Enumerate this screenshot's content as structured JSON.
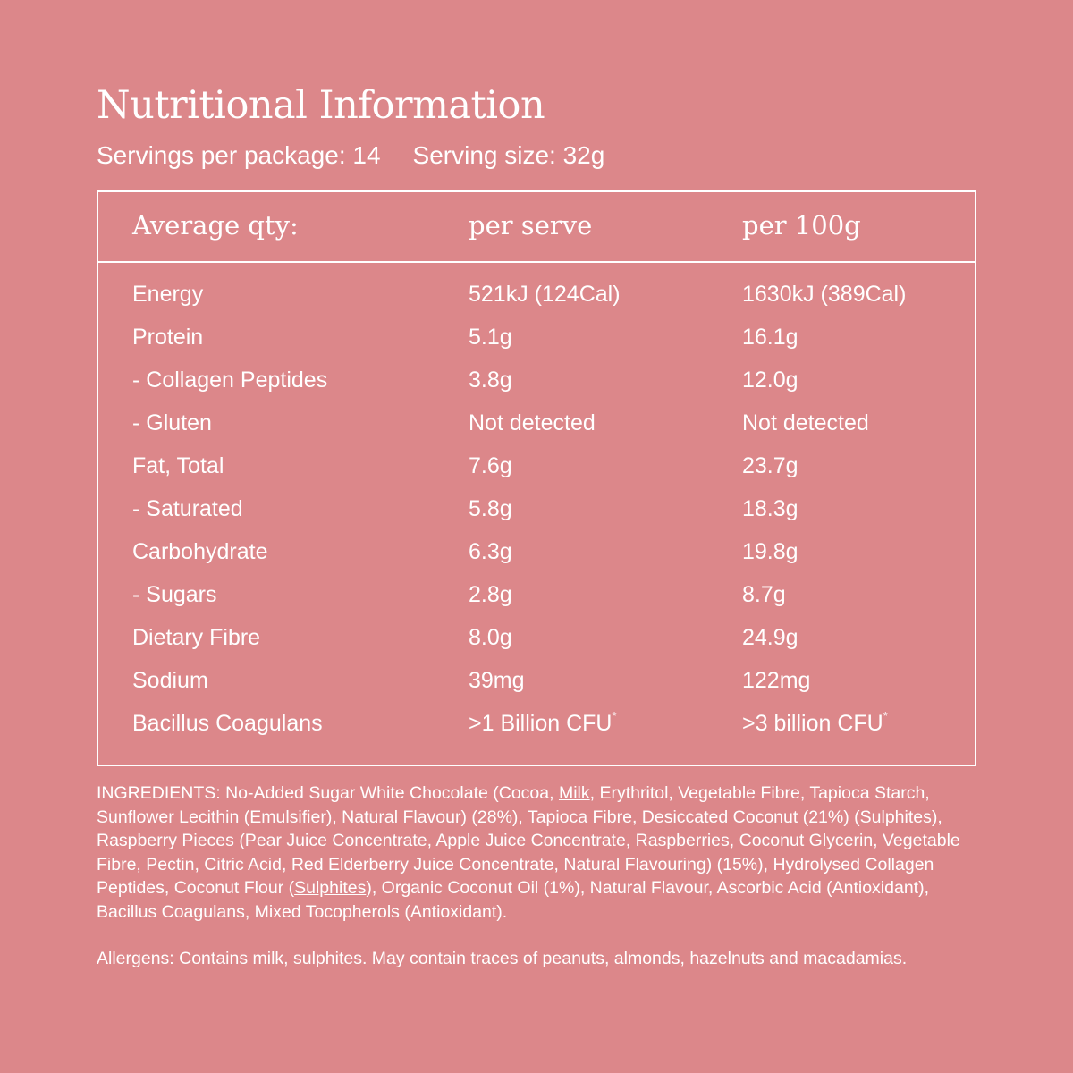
{
  "title": "Nutritional Information",
  "servings": {
    "per_package": "Servings per package: 14",
    "size": "Serving size: 32g"
  },
  "table": {
    "headers": [
      "Average qty:",
      "per serve",
      "per 100g"
    ],
    "rows": [
      {
        "label": "Energy",
        "per_serve": "521kJ (124Cal)",
        "per_100g": "1630kJ (389Cal)"
      },
      {
        "label": "Protein",
        "per_serve": "5.1g",
        "per_100g": "16.1g"
      },
      {
        "label": "- Collagen Peptides",
        "per_serve": "3.8g",
        "per_100g": "12.0g"
      },
      {
        "label": "- Gluten",
        "per_serve": "Not detected",
        "per_100g": "Not detected"
      },
      {
        "label": "Fat, Total",
        "per_serve": "7.6g",
        "per_100g": "23.7g"
      },
      {
        "label": "- Saturated",
        "per_serve": "5.8g",
        "per_100g": "18.3g"
      },
      {
        "label": "Carbohydrate",
        "per_serve": "6.3g",
        "per_100g": "19.8g"
      },
      {
        "label": "- Sugars",
        "per_serve": "2.8g",
        "per_100g": "8.7g"
      },
      {
        "label": "Dietary Fibre",
        "per_serve": "8.0g",
        "per_100g": "24.9g"
      },
      {
        "label": "Sodium",
        "per_serve": "39mg",
        "per_100g": "122mg"
      },
      {
        "label": "Bacillus Coagulans",
        "per_serve": ">1 Billion CFU",
        "per_100g": ">3 billion CFU",
        "footnote": "*"
      }
    ]
  },
  "ingredients": {
    "parts": [
      "INGREDIENTS: No-Added Sugar White Chocolate (Cocoa, ",
      "Milk",
      ", Erythritol, Vegetable Fibre, Tapioca Starch, Sunflower Lecithin (Emulsifier), Natural Flavour) (28%), Tapioca Fibre, Desiccated Coconut (21%) (",
      "Sulphites",
      "), Raspberry Pieces (Pear Juice Concentrate, Apple Juice Concentrate, Raspberries, Coconut Glycerin, Vegetable Fibre, Pectin, Citric Acid, Red Elderberry Juice Concentrate, Natural Flavouring) (15%), Hydrolysed Collagen Peptides, Coconut Flour (",
      "Sulphites",
      "), Organic Coconut Oil (1%), Natural Flavour, Ascorbic Acid (Antioxidant), Bacillus Coagulans, Mixed Tocopherols (Antioxidant)."
    ]
  },
  "allergens": "Allergens: Contains milk, sulphites. May contain traces of peanuts, almonds, hazelnuts and macadamias.",
  "colors": {
    "background": "#dc878a",
    "text": "#ffffff"
  }
}
